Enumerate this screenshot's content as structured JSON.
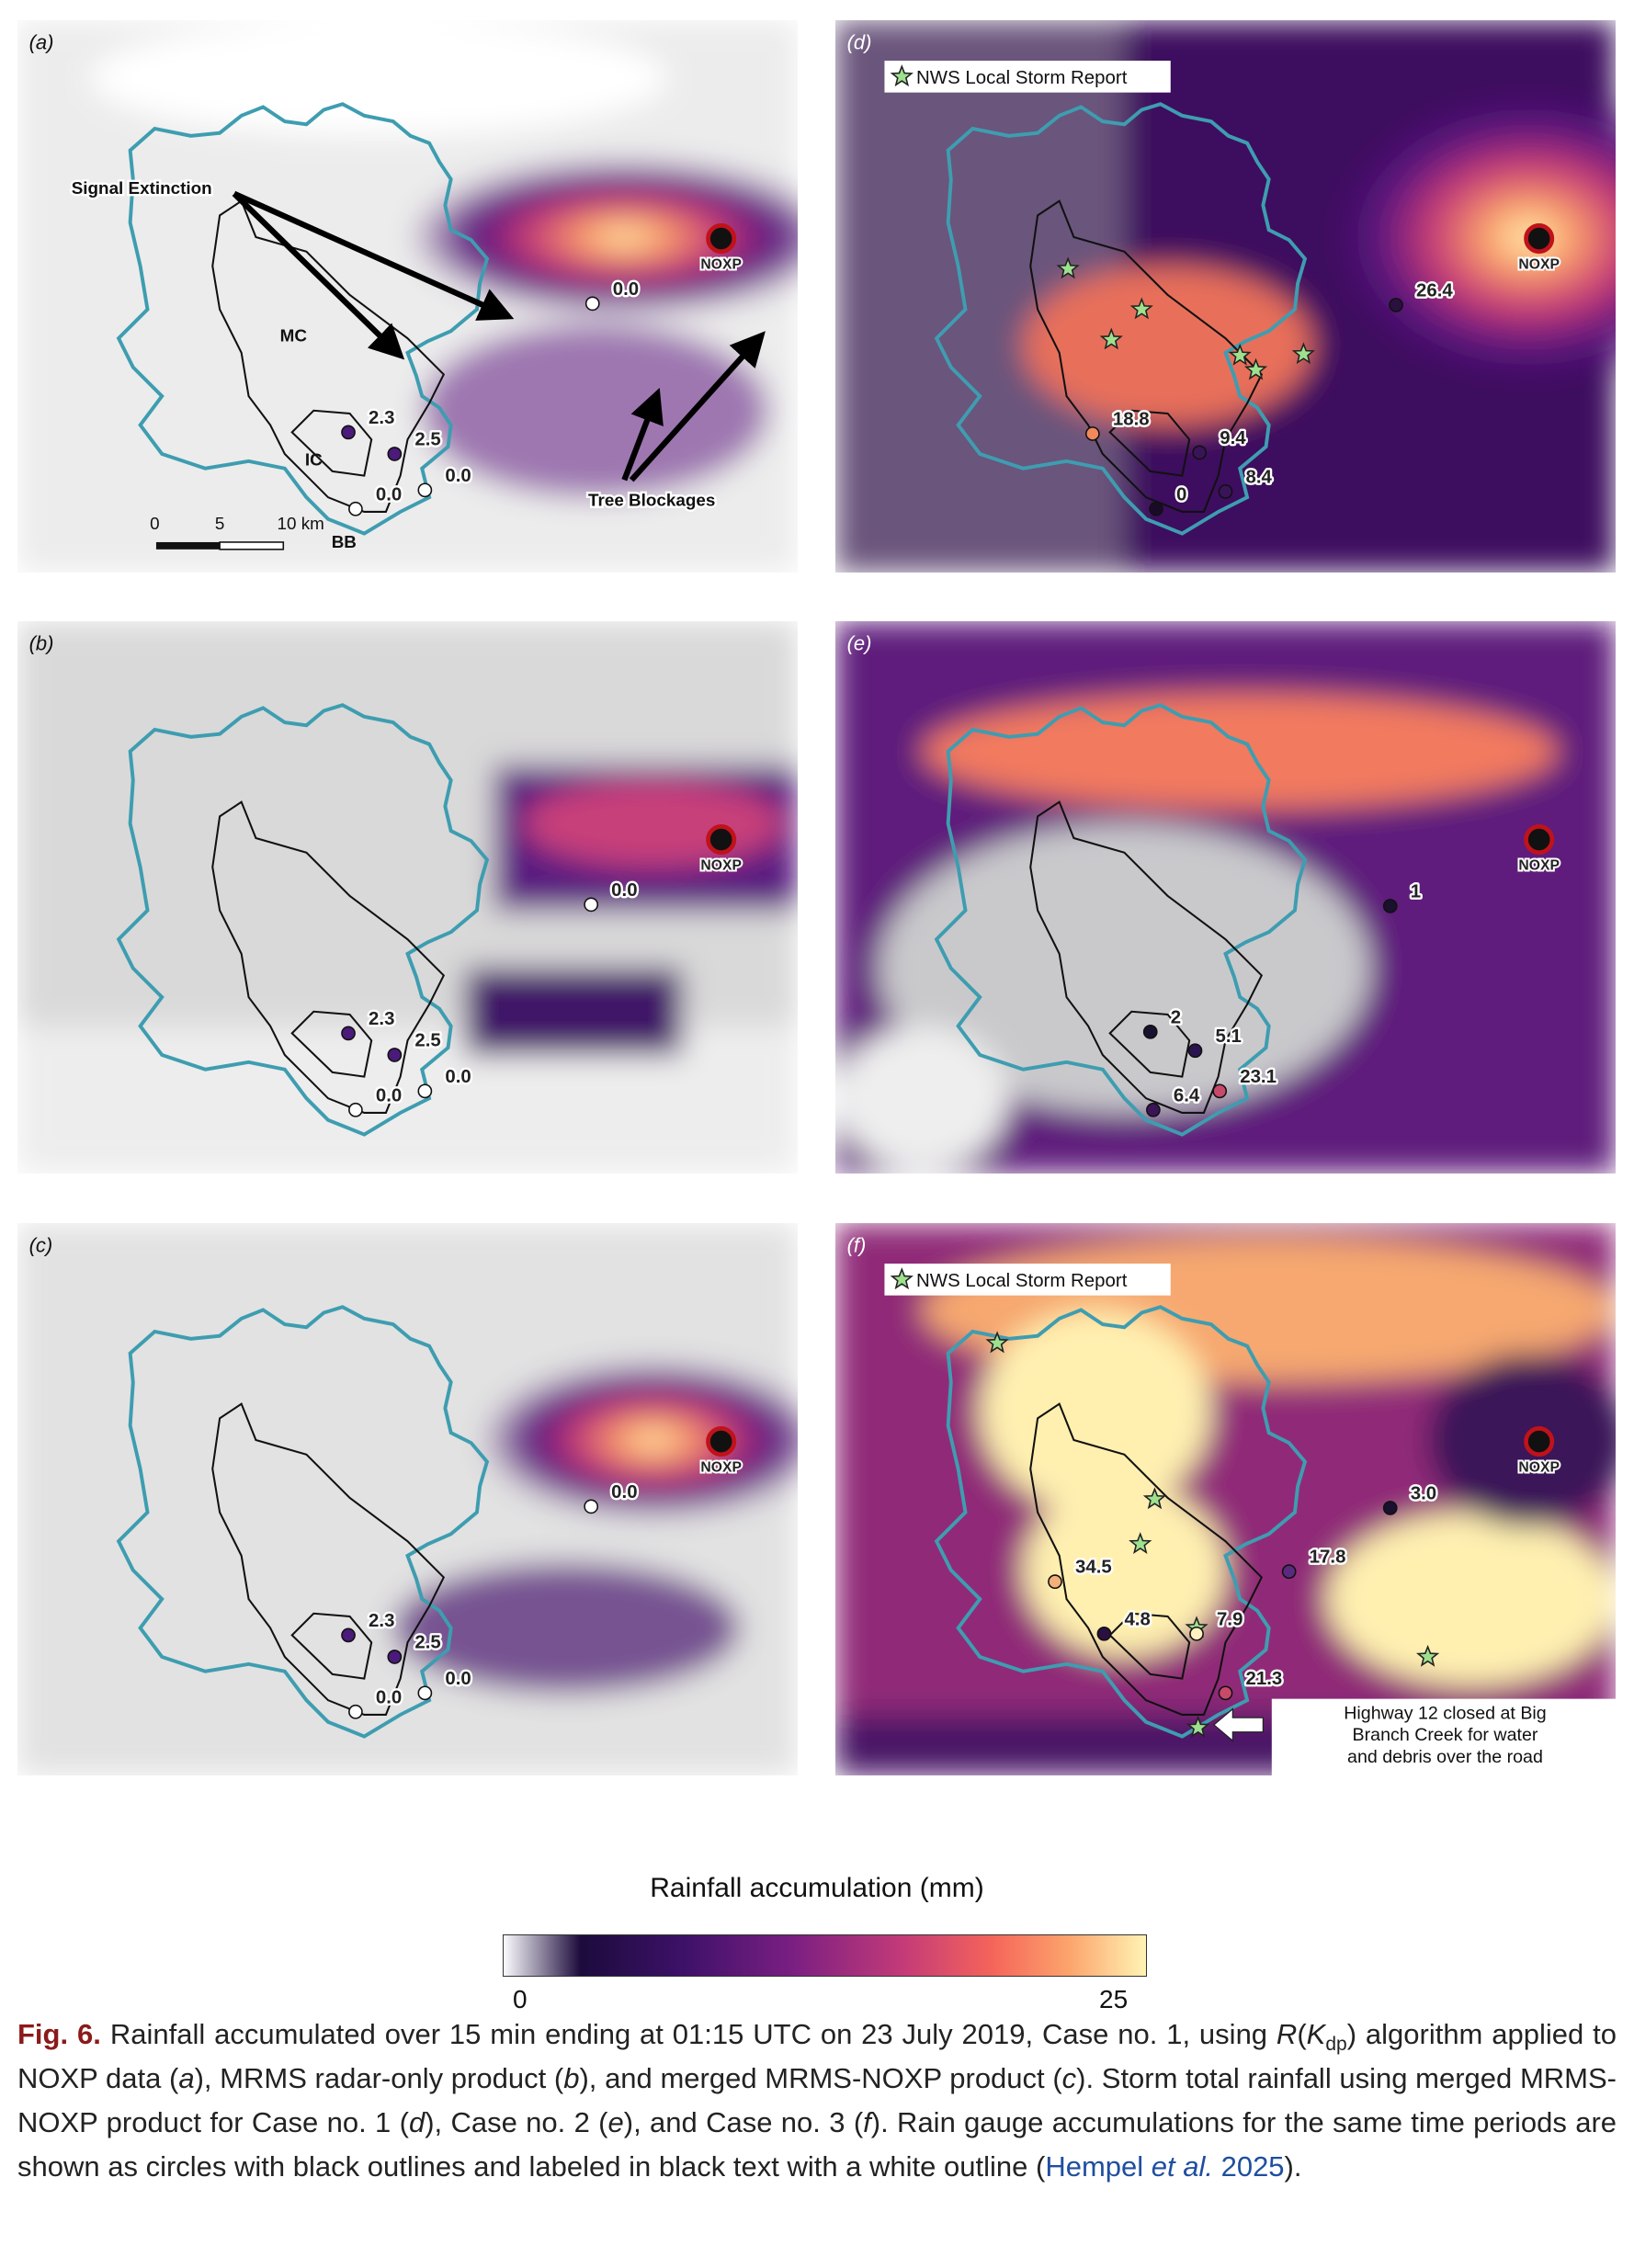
{
  "panels": [
    {
      "label": "(a)",
      "radar": "NOXP",
      "annotations": {
        "signal_extinction": "Signal Extinction",
        "tree_blockages": "Tree Blockages",
        "mc": "MC",
        "ic": "IC",
        "bb": "BB"
      },
      "scale_bar": [
        "0",
        "5",
        "10 km"
      ],
      "gauges": [
        {
          "label": "0.0",
          "color": "#ffffff"
        },
        {
          "label": "2.3",
          "color": "#4b1a7a"
        },
        {
          "label": "2.5",
          "color": "#4b1a7a"
        },
        {
          "label": "0.0",
          "color": "#ffffff"
        },
        {
          "label": "0.0",
          "color": "#ffffff"
        }
      ]
    },
    {
      "label": "(b)",
      "radar": "NOXP",
      "gauges": [
        {
          "label": "0.0",
          "color": "#ffffff"
        },
        {
          "label": "2.3",
          "color": "#4b1a7a"
        },
        {
          "label": "2.5",
          "color": "#4b1a7a"
        },
        {
          "label": "0.0",
          "color": "#ffffff"
        },
        {
          "label": "0.0",
          "color": "#ffffff"
        }
      ]
    },
    {
      "label": "(c)",
      "radar": "NOXP",
      "gauges": [
        {
          "label": "0.0",
          "color": "#ffffff"
        },
        {
          "label": "2.3",
          "color": "#4b1a7a"
        },
        {
          "label": "2.5",
          "color": "#4b1a7a"
        },
        {
          "label": "0.0",
          "color": "#ffffff"
        },
        {
          "label": "0.0",
          "color": "#ffffff"
        }
      ]
    },
    {
      "label": "(d)",
      "radar": "NOXP",
      "legend": "NWS Local Storm Report",
      "gauges": [
        {
          "label": "26.4",
          "color": "#2a1040"
        },
        {
          "label": "18.8",
          "color": "#f08a5a"
        },
        {
          "label": "9.4",
          "color": "#3a1458"
        },
        {
          "label": "8.4",
          "color": "#3a1458"
        },
        {
          "label": "0",
          "color": "#1a0a2a"
        }
      ]
    },
    {
      "label": "(e)",
      "radar": "NOXP",
      "gauges": [
        {
          "label": "1",
          "color": "#1a1030"
        },
        {
          "label": "2",
          "color": "#1a1030"
        },
        {
          "label": "5.1",
          "color": "#2a1450"
        },
        {
          "label": "23.1",
          "color": "#c84a6a"
        },
        {
          "label": "6.4",
          "color": "#3a1458"
        }
      ]
    },
    {
      "label": "(f)",
      "radar": "NOXP",
      "legend": "NWS Local Storm Report",
      "annotation": [
        "Highway 12 closed at Big",
        "Branch Creek for water",
        "and debris over the road"
      ],
      "gauges": [
        {
          "label": "3.0",
          "color": "#1a1030"
        },
        {
          "label": "17.8",
          "color": "#5a2a80"
        },
        {
          "label": "34.5",
          "color": "#f4b07a"
        },
        {
          "label": "4.8",
          "color": "#2a1040"
        },
        {
          "label": "7.9",
          "color": "#fff2c0"
        },
        {
          "label": "21.3",
          "color": "#c84a6a"
        }
      ]
    }
  ],
  "colorbar": {
    "title": "Rainfall accumulation (mm)",
    "min": 0,
    "max": 25
  },
  "caption": {
    "label": "Fig. 6.",
    "parts": [
      "Rainfall accumulated over 15 min ending at 01:15 UTC on 23 July 2019, Case no. 1, using ",
      "R",
      "(",
      "K",
      "dp",
      ") algorithm applied to NOXP data (",
      "a",
      "), MRMS radar-only product (",
      "b",
      "), and merged MRMS-NOXP product (",
      "c",
      "). Storm total rainfall using merged MRMS-NOXP product for Case no. 1 (",
      "d",
      "), Case no. 2 (",
      "e",
      "), and Case no. 3 (",
      "f",
      "). Rain gauge accumulations for the same time periods are shown as circles with black outlines and labeled in black text with a white outline (",
      "Hempel ",
      "et al.",
      " 2025",
      ")."
    ]
  }
}
